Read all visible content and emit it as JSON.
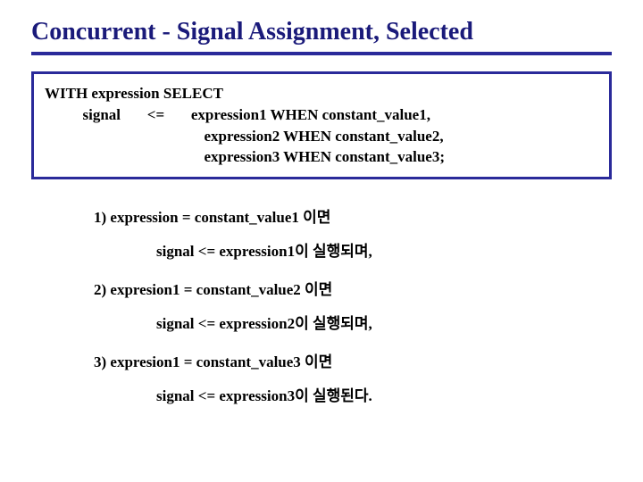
{
  "title": "Concurrent - Signal Assignment, Selected",
  "colors": {
    "title_color": "#1a1a7a",
    "border_color": "#2a2a9a",
    "text_color": "#000000",
    "background": "#ffffff"
  },
  "syntax": {
    "line1": "WITH expression SELECT",
    "line2": "          signal       <=       expression1 WHEN constant_value1,",
    "line3": "                                          expression2 WHEN constant_value2,",
    "line4": "                                          expression3 WHEN constant_value3;"
  },
  "explain": {
    "item1": "1) expression = constant_value1 이면",
    "sub1": "signal <= expression1이 실행되며,",
    "item2": "2) expresion1 = constant_value2 이면",
    "sub2": "signal <= expression2이 실행되며,",
    "item3": "3) expresion1 = constant_value3 이면",
    "sub3": "signal <= expression3이 실행된다."
  },
  "typography": {
    "title_fontsize": 28,
    "body_fontsize": 17,
    "font_family": "Times New Roman"
  }
}
